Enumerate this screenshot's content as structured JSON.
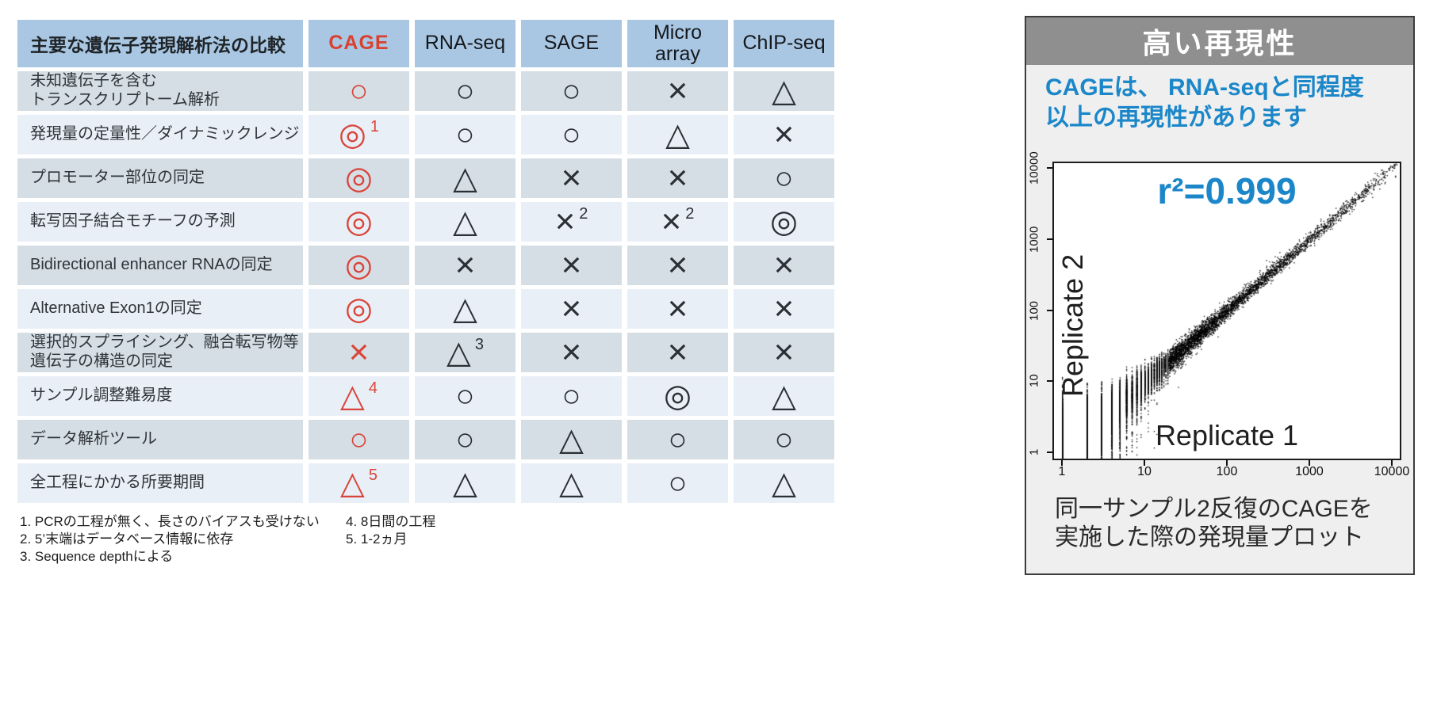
{
  "table": {
    "title": "主要な遺伝子発現解析法の比較",
    "methods": [
      "CAGE",
      "RNA-seq",
      "SAGE",
      "Micro\narray",
      "ChIP-seq"
    ],
    "symbol_glyphs": {
      "circle": "○",
      "double-circle": "◎",
      "triangle": "△",
      "cross": "×"
    },
    "rows": [
      {
        "label": "未知遺伝子を含む\nトランスクリプトーム解析",
        "cells": [
          {
            "s": "circle",
            "sup": ""
          },
          {
            "s": "circle",
            "sup": ""
          },
          {
            "s": "circle",
            "sup": ""
          },
          {
            "s": "cross",
            "sup": ""
          },
          {
            "s": "triangle",
            "sup": ""
          }
        ]
      },
      {
        "label": "発現量の定量性／ダイナミックレンジ",
        "cells": [
          {
            "s": "double-circle",
            "sup": "1"
          },
          {
            "s": "circle",
            "sup": ""
          },
          {
            "s": "circle",
            "sup": ""
          },
          {
            "s": "triangle",
            "sup": ""
          },
          {
            "s": "cross",
            "sup": ""
          }
        ]
      },
      {
        "label": "プロモーター部位の同定",
        "cells": [
          {
            "s": "double-circle",
            "sup": ""
          },
          {
            "s": "triangle",
            "sup": ""
          },
          {
            "s": "cross",
            "sup": ""
          },
          {
            "s": "cross",
            "sup": ""
          },
          {
            "s": "circle",
            "sup": ""
          }
        ]
      },
      {
        "label": "転写因子結合モチーフの予測",
        "cells": [
          {
            "s": "double-circle",
            "sup": ""
          },
          {
            "s": "triangle",
            "sup": ""
          },
          {
            "s": "cross",
            "sup": "2"
          },
          {
            "s": "cross",
            "sup": "2"
          },
          {
            "s": "double-circle",
            "sup": ""
          }
        ]
      },
      {
        "label": "Bidirectional enhancer RNAの同定",
        "cells": [
          {
            "s": "double-circle",
            "sup": ""
          },
          {
            "s": "cross",
            "sup": ""
          },
          {
            "s": "cross",
            "sup": ""
          },
          {
            "s": "cross",
            "sup": ""
          },
          {
            "s": "cross",
            "sup": ""
          }
        ]
      },
      {
        "label": "Alternative Exon1の同定",
        "cells": [
          {
            "s": "double-circle",
            "sup": ""
          },
          {
            "s": "triangle",
            "sup": ""
          },
          {
            "s": "cross",
            "sup": ""
          },
          {
            "s": "cross",
            "sup": ""
          },
          {
            "s": "cross",
            "sup": ""
          }
        ]
      },
      {
        "label": "選択的スプライシング、融合転写物等\n遺伝子の構造の同定",
        "cells": [
          {
            "s": "cross",
            "sup": ""
          },
          {
            "s": "triangle",
            "sup": "3"
          },
          {
            "s": "cross",
            "sup": ""
          },
          {
            "s": "cross",
            "sup": ""
          },
          {
            "s": "cross",
            "sup": ""
          }
        ]
      },
      {
        "label": "サンプル調整難易度",
        "cells": [
          {
            "s": "triangle",
            "sup": "4"
          },
          {
            "s": "circle",
            "sup": ""
          },
          {
            "s": "circle",
            "sup": ""
          },
          {
            "s": "double-circle",
            "sup": ""
          },
          {
            "s": "triangle",
            "sup": ""
          }
        ]
      },
      {
        "label": "データ解析ツール",
        "cells": [
          {
            "s": "circle",
            "sup": ""
          },
          {
            "s": "circle",
            "sup": ""
          },
          {
            "s": "triangle",
            "sup": ""
          },
          {
            "s": "circle",
            "sup": ""
          },
          {
            "s": "circle",
            "sup": ""
          }
        ]
      },
      {
        "label": "全工程にかかる所要期間",
        "cells": [
          {
            "s": "triangle",
            "sup": "5"
          },
          {
            "s": "triangle",
            "sup": ""
          },
          {
            "s": "triangle",
            "sup": ""
          },
          {
            "s": "circle",
            "sup": ""
          },
          {
            "s": "triangle",
            "sup": ""
          }
        ]
      }
    ]
  },
  "footnotes": {
    "col1": [
      "1. PCRの工程が無く、長さのバイアスも受けない",
      "2. 5’末端はデータベース情報に依存",
      "3. Sequence depthによる"
    ],
    "col2": [
      "4. 8日間の工程",
      "5. 1-2ヵ月"
    ]
  },
  "panel": {
    "title": "高い再現性",
    "message_lines": [
      "CAGEは、 RNA-seqと同程度",
      "以上の再現性があります"
    ],
    "caption_lines": [
      "同一サンプル2反復のCAGEを",
      "実施した際の発現量プロット"
    ]
  },
  "chart_data": {
    "type": "scatter",
    "title": "高い再現性",
    "xlabel": "Replicate 1",
    "ylabel": "Replicate 2",
    "xscale": "log",
    "yscale": "log",
    "xlim": [
      1,
      10000
    ],
    "ylim": [
      1,
      10000
    ],
    "xticks": [
      1,
      10,
      100,
      1000,
      10000
    ],
    "yticks": [
      1,
      10,
      100,
      1000,
      10000
    ],
    "grid": false,
    "legend": "none",
    "annotation": "r²=0.999",
    "r_squared": 0.999,
    "marker_color": "#000000",
    "pattern": "dense black diagonal band y≈x across 4 decades; spread widest at low counts with vertical integer striping below ~20; sparse isolated points above 1000",
    "sim": {
      "n": 14000,
      "seed": 11,
      "decay_decades": 1.05,
      "sigma_base": 0.035,
      "sigma_low": 0.3,
      "sigma_decay": 0.55,
      "quantize_below": 20,
      "max_exp": 4.08,
      "min_y": 0.78
    }
  },
  "colors": {
    "header_blue": "#a9c7e3",
    "row_dark": "#d5dee5",
    "row_light": "#e9eff7",
    "accent_red": "#d9453a",
    "accent_blue": "#1b87c9",
    "panel_gray": "#8f8f8f",
    "panel_bg": "#efefef",
    "symbol_ink": "#2b3036"
  }
}
